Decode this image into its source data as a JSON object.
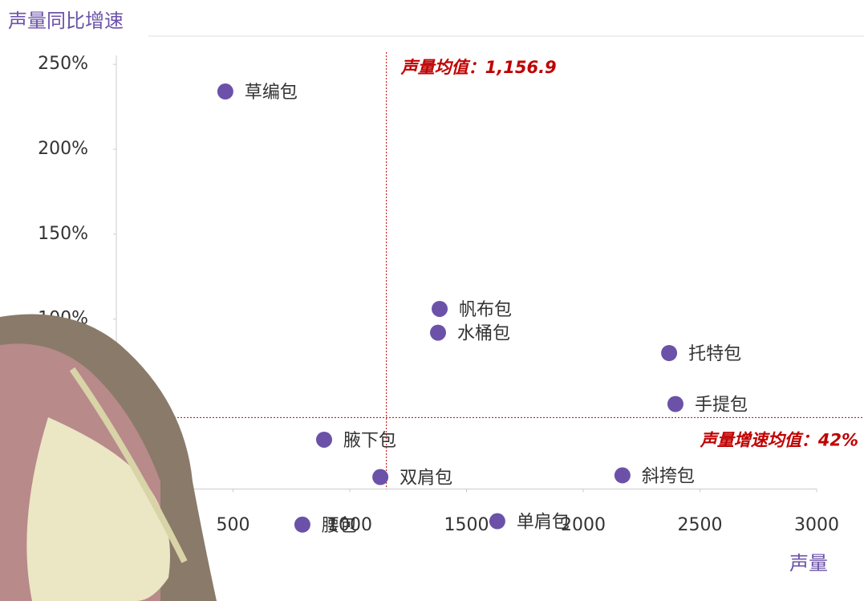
{
  "chart_data": {
    "type": "scatter",
    "y_axis_title": "声量同比增速",
    "x_axis_title": "声量",
    "categories": [
      "草编包",
      "帆布包",
      "水桶包",
      "托特包",
      "手提包",
      "腋下包",
      "双肩包",
      "斜挎包",
      "腰包",
      "单肩包"
    ],
    "x": [
      467,
      1385,
      1378,
      2368,
      2395,
      890,
      1131,
      2168,
      797,
      1632
    ],
    "values": [
      234,
      106,
      92,
      80,
      50,
      29,
      7,
      8,
      -21,
      -19
    ],
    "color": "#6b52a8",
    "xlim": [
      0,
      3000
    ],
    "ylim": [
      -40,
      260
    ],
    "xticks": [
      500,
      1000,
      1500,
      2000,
      2500,
      3000
    ],
    "yticks": [
      {
        "value": 100,
        "label": "100%"
      },
      {
        "value": 150,
        "label": "150%"
      },
      {
        "value": 200,
        "label": "200%"
      },
      {
        "value": 250,
        "label": "250%"
      }
    ],
    "annotations": [
      {
        "axis": "x",
        "value": 1156.9,
        "text": "声量均值：1,156.9"
      },
      {
        "axis": "y",
        "value": 42,
        "text": "声量增速均值：42%"
      }
    ],
    "annotation_color": "#c00000"
  }
}
